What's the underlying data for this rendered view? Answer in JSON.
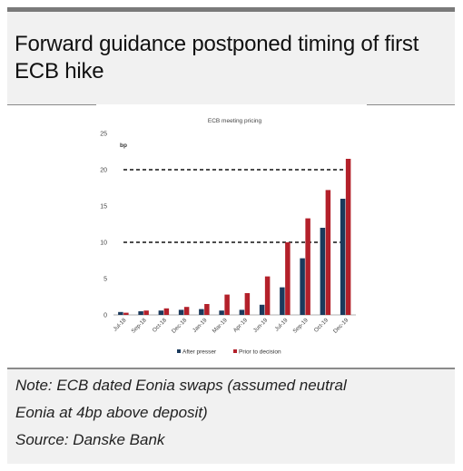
{
  "title": "Forward guidance postponed timing of first ECB hike",
  "notes": [
    "Note: ECB dated Eonia swaps (assumed neutral",
    "Eonia at 4bp above deposit)",
    "Source: Danske Bank"
  ],
  "colors": {
    "after": "#1b3a5c",
    "prior": "#b3202a"
  },
  "chart_data": {
    "type": "bar",
    "title": "ECB meeting pricing",
    "ylabel": "bp",
    "xlabel": "",
    "ylim": [
      0,
      25
    ],
    "yticks": [
      0,
      5,
      10,
      15,
      20,
      25
    ],
    "categories": [
      "Jul-18",
      "Sep-18",
      "Oct-18",
      "Dec-18",
      "Jan-19",
      "Mar-19",
      "Apr-19",
      "Jun-19",
      "Jul-19",
      "Sep-19",
      "Oct-19",
      "Dec-19"
    ],
    "series": [
      {
        "name": "After presser",
        "values": [
          0.4,
          0.5,
          0.6,
          0.7,
          0.8,
          0.6,
          0.7,
          1.4,
          3.8,
          7.8,
          12.0,
          16.0
        ]
      },
      {
        "name": "Prior to decision",
        "values": [
          0.3,
          0.6,
          0.9,
          1.1,
          1.5,
          2.8,
          3.0,
          5.3,
          10.0,
          13.3,
          17.2,
          21.5
        ]
      }
    ],
    "reference_lines": [
      10,
      20
    ],
    "legend": "bottom",
    "grid": false
  }
}
